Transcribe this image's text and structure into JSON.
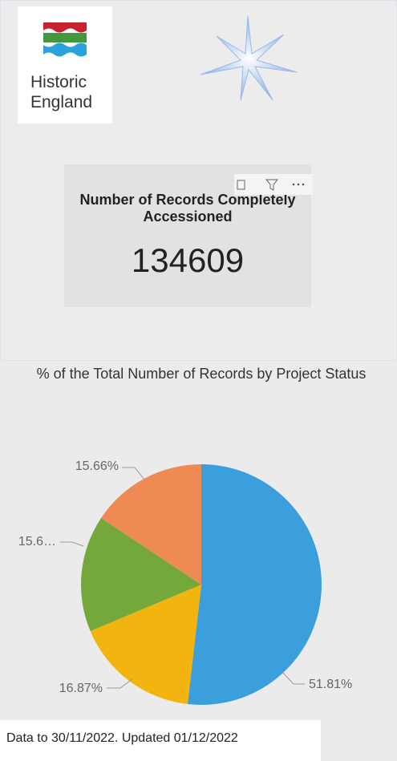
{
  "logo": {
    "lines": [
      "Historic",
      "England"
    ]
  },
  "card": {
    "title": "Number of Records Completely Accessioned",
    "value": "134609"
  },
  "chart_data": {
    "type": "pie",
    "title": "% of the Total Number of Records by Project Status",
    "values": [
      51.81,
      16.87,
      15.66,
      15.66
    ],
    "value_labels": [
      "51.81%",
      "16.87%",
      "15.6…",
      "15.66%"
    ],
    "colors": [
      "#3a9fdb",
      "#f2b50f",
      "#74a83a",
      "#ef8a55"
    ]
  },
  "footer": "Data to 30/11/2022. Updated 01/12/2022"
}
